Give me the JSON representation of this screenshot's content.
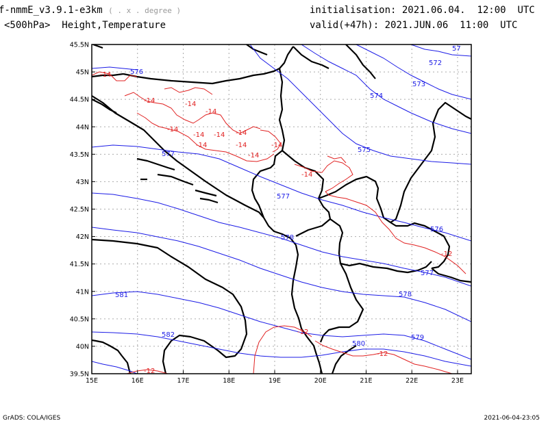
{
  "header": {
    "model": "f-nmmE_v3.9.1-e3km",
    "units": "( . x . degree )",
    "field": "<500hPa>  Height,Temperature",
    "init_label": "initialisation:",
    "init_value": "2021.06.04.  12:00  UTC",
    "valid_label": "valid(+47h):",
    "valid_value": "2021.JUN.06  11:00  UTC"
  },
  "footer": {
    "software": "GrADS: COLA/IGES",
    "timestamp": "2021-06-04-23:05"
  },
  "map": {
    "lon_range": [
      15,
      23.3
    ],
    "lat_range": [
      39.5,
      45.5
    ],
    "lon_ticks": [
      "15E",
      "16E",
      "17E",
      "18E",
      "19E",
      "20E",
      "21E",
      "22E",
      "23E"
    ],
    "lat_ticks": [
      "39.5N",
      "40N",
      "40.5N",
      "41N",
      "41.5N",
      "42N",
      "42.5N",
      "43N",
      "43.5N",
      "44N",
      "44.5N",
      "45N",
      "45.5N"
    ],
    "height_color": "#1a1ae6",
    "temperature_color": "#e02020",
    "height_labels": [
      "576",
      "572",
      "573",
      "574",
      "575",
      "577",
      "577",
      "578",
      "576",
      "577",
      "578",
      "581",
      "582",
      "580",
      "579",
      "57"
    ],
    "temperature_labels": [
      "-14",
      "-14",
      "-14",
      "-14",
      "-14",
      "-14",
      "-14",
      "-14",
      "-14",
      "-14",
      "-14",
      "-14",
      "-14",
      "-12",
      "-12",
      "-12",
      "-12"
    ]
  }
}
